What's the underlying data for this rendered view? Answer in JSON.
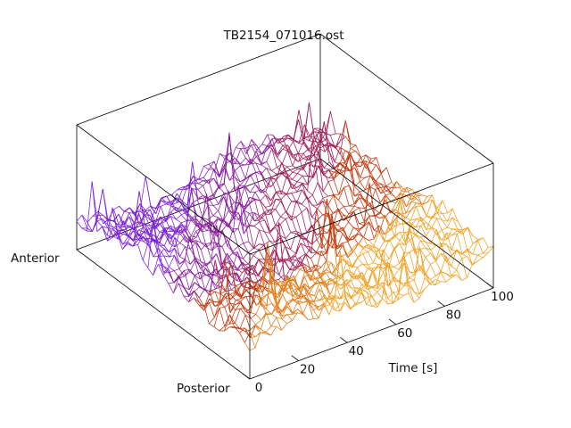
{
  "chart_data": {
    "type": "surface-wireframe",
    "title": "TB2154_071016.ost",
    "xlabel": "Time [s]",
    "ylabel_near": "Posterior",
    "ylabel_far": "Anterior",
    "xlim": [
      0,
      100
    ],
    "x_ticks": [
      "0",
      "20",
      "40",
      "60",
      "80",
      "100"
    ],
    "x_tick_values": [
      0,
      20,
      40,
      60,
      80,
      100
    ],
    "ylim": [
      0,
      1
    ],
    "grid": false,
    "colormap": [
      "#7b1fd8",
      "#8a1f9e",
      "#a01f5a",
      "#c23a10",
      "#e07d18",
      "#f0a020"
    ]
  }
}
